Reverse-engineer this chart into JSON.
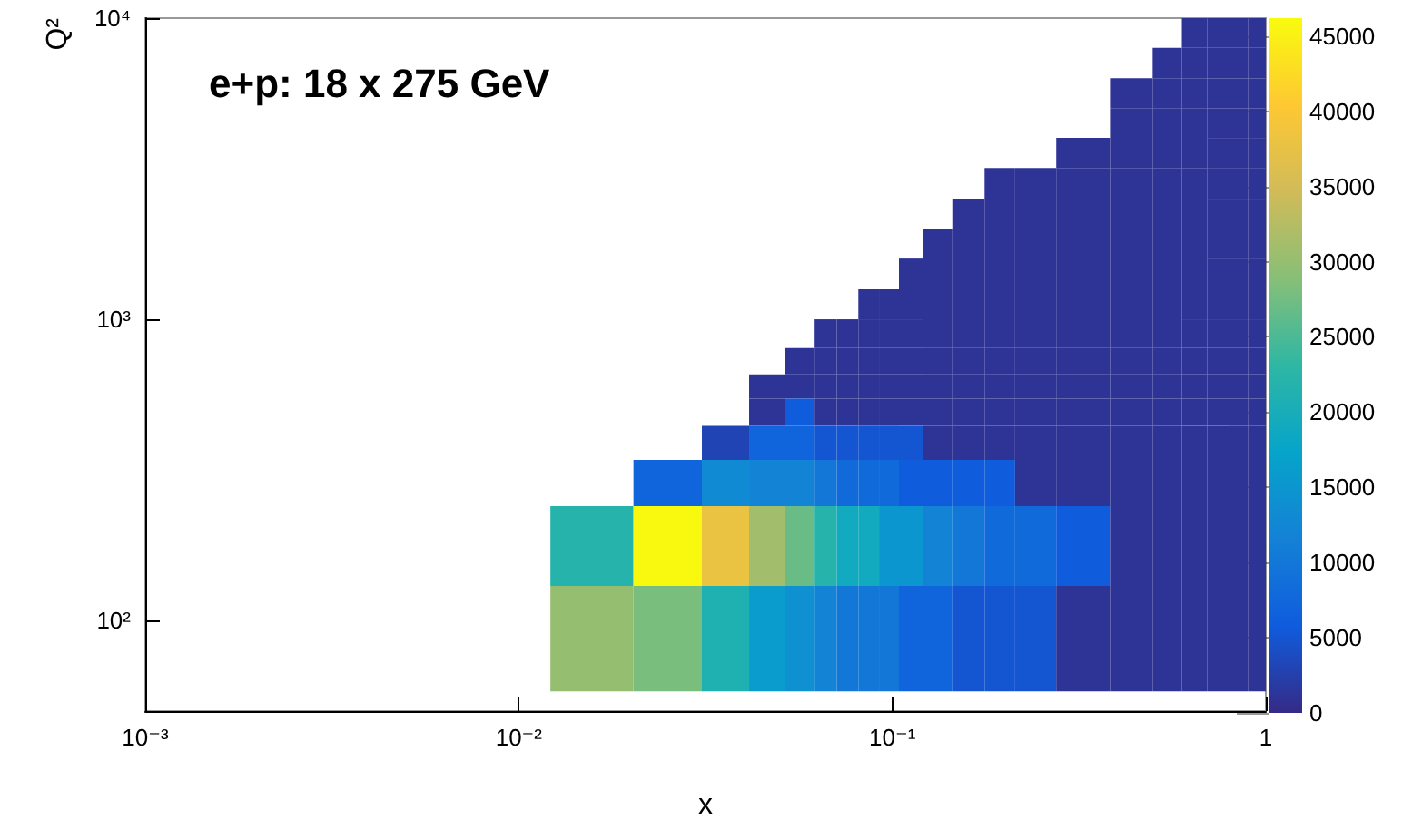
{
  "chart_data": {
    "type": "heatmap",
    "title": "e+p: 18 x 275 GeV",
    "xlabel": "x",
    "ylabel": "Q²",
    "log": "xy",
    "x": [
      0.0157,
      0.0262,
      0.0365,
      0.0469,
      0.0571,
      0.0665,
      0.0758,
      0.0868,
      0.0978,
      0.111,
      0.131,
      0.16,
      0.195,
      0.233,
      0.324,
      0.452,
      0.548,
      0.648,
      0.748,
      0.849,
      0.949
    ],
    "y": [
      8944,
      7099,
      5612,
      4472,
      3578,
      2828,
      2236,
      1789,
      1414,
      1118,
      894,
      721,
      598,
      497,
      395,
      295,
      195,
      87
    ],
    "cells": [
      [
        null,
        null,
        null,
        null,
        null,
        null,
        null,
        null,
        null,
        null,
        null,
        null,
        null,
        null,
        null,
        null,
        null,
        1000,
        1000,
        1000,
        1000
      ],
      [
        null,
        null,
        null,
        null,
        null,
        null,
        null,
        null,
        null,
        null,
        null,
        null,
        null,
        null,
        null,
        null,
        1000,
        1000,
        1000,
        1000,
        1000
      ],
      [
        null,
        null,
        null,
        null,
        null,
        null,
        null,
        null,
        null,
        null,
        null,
        null,
        null,
        null,
        null,
        1000,
        1000,
        1000,
        1000,
        1000,
        1000
      ],
      [
        null,
        null,
        null,
        null,
        null,
        null,
        null,
        null,
        null,
        null,
        null,
        null,
        null,
        null,
        null,
        1000,
        1000,
        1000,
        1000,
        1000,
        1000
      ],
      [
        null,
        null,
        null,
        null,
        null,
        null,
        null,
        null,
        null,
        null,
        null,
        null,
        null,
        null,
        1000,
        1000,
        1000,
        1000,
        1000,
        1000,
        1000
      ],
      [
        null,
        null,
        null,
        null,
        null,
        null,
        null,
        null,
        null,
        null,
        null,
        null,
        1000,
        1000,
        1000,
        1000,
        1000,
        1000,
        1000,
        1000,
        1000
      ],
      [
        null,
        null,
        null,
        null,
        null,
        null,
        null,
        null,
        null,
        null,
        null,
        1000,
        1000,
        1000,
        1000,
        1000,
        1000,
        1000,
        1000,
        1000,
        1000
      ],
      [
        null,
        null,
        null,
        null,
        null,
        null,
        null,
        null,
        null,
        null,
        1000,
        1000,
        1000,
        1000,
        1000,
        1000,
        1000,
        1000,
        1000,
        1000,
        1000
      ],
      [
        null,
        null,
        null,
        null,
        null,
        null,
        null,
        null,
        null,
        1000,
        1000,
        1000,
        1000,
        1000,
        1000,
        1000,
        1000,
        1000,
        1000,
        1000,
        1000
      ],
      [
        null,
        null,
        null,
        null,
        null,
        null,
        null,
        1000,
        1000,
        1000,
        1000,
        1000,
        1000,
        1000,
        1000,
        1000,
        1000,
        1000,
        1000,
        1000,
        1000
      ],
      [
        null,
        null,
        null,
        null,
        null,
        1000,
        1000,
        1000,
        1000,
        1000,
        1000,
        1000,
        1000,
        1000,
        1000,
        1000,
        1000,
        1000,
        1000,
        1000,
        1000
      ],
      [
        null,
        null,
        null,
        null,
        1000,
        1000,
        1000,
        1000,
        1000,
        1000,
        1000,
        1000,
        1000,
        1000,
        1000,
        1000,
        1000,
        1000,
        1000,
        1000,
        1000
      ],
      [
        null,
        null,
        null,
        1000,
        1000,
        1000,
        1000,
        1000,
        1000,
        1000,
        1000,
        1000,
        1000,
        1000,
        1000,
        1000,
        1000,
        1000,
        1000,
        1000,
        1000
      ],
      [
        null,
        null,
        null,
        1000,
        6000,
        1000,
        1000,
        1000,
        1000,
        1000,
        1000,
        1000,
        1000,
        1000,
        1000,
        1000,
        1000,
        1000,
        1000,
        1000,
        1000
      ],
      [
        null,
        null,
        3000,
        7000,
        7000,
        5000,
        5000,
        5000,
        5000,
        5000,
        1000,
        1000,
        1000,
        1000,
        1000,
        1000,
        1000,
        1000,
        1000,
        1000,
        1000
      ],
      [
        null,
        7000,
        13000,
        12000,
        12000,
        10000,
        8000,
        8000,
        8000,
        6000,
        6000,
        6000,
        6000,
        1000,
        1000,
        1000,
        1000,
        1000,
        1000,
        1000,
        1000
      ],
      [
        22000,
        46000,
        38000,
        31000,
        27000,
        22000,
        19000,
        19000,
        15000,
        15000,
        12000,
        10000,
        8000,
        8000,
        6000,
        1000,
        1000,
        1000,
        1000,
        1000,
        1000
      ],
      [
        30000,
        28000,
        21000,
        16000,
        14000,
        12000,
        10000,
        10000,
        10000,
        7000,
        7000,
        5000,
        5000,
        5000,
        1000,
        1000,
        1000,
        1000,
        1000,
        1000,
        1000
      ]
    ],
    "clim": [
      0,
      46200
    ],
    "cticks": [
      0,
      5000,
      10000,
      15000,
      20000,
      25000,
      30000,
      35000,
      40000,
      45000
    ],
    "xlim": [
      0.001,
      1
    ],
    "ylim": [
      50,
      10000
    ],
    "xticks": [
      {
        "value": 0.001,
        "label": "10⁻³"
      },
      {
        "value": 0.01,
        "label": "10⁻²"
      },
      {
        "value": 0.1,
        "label": "10⁻¹"
      },
      1
    ],
    "yticks": [
      {
        "value": 100,
        "label": "10²"
      },
      {
        "value": 1000,
        "label": "10³"
      },
      {
        "value": 10000,
        "label": "10⁴"
      }
    ],
    "grid": false
  }
}
